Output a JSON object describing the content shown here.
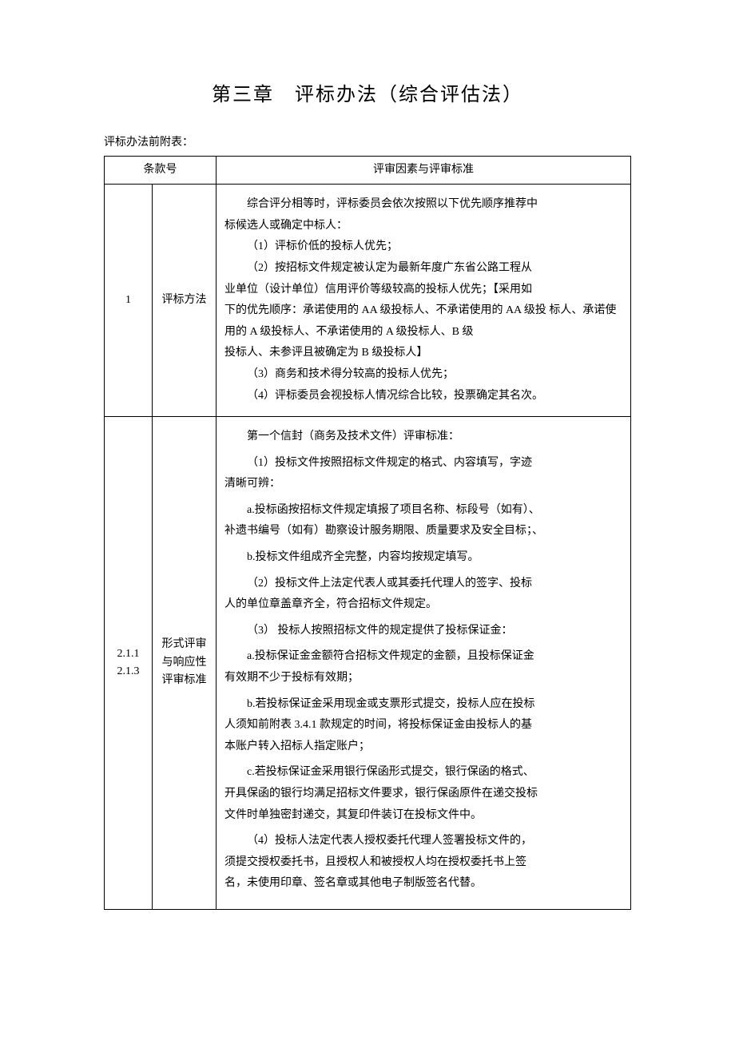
{
  "title": "第三章　评标办法（综合评估法）",
  "subtitle": "评标办法前附表：",
  "header": {
    "col1": "条款号",
    "col2": "评审因素与评审标准"
  },
  "row1": {
    "num": "1",
    "method": "评标方法",
    "lines": {
      "l1": "综合评分相等时，评标委员会依次按照以下优先顺序推荐中",
      "l2": "标候选人或确定中标人：",
      "l3": "（1）评标价低的投标人优先；",
      "l4": "（2）按招标文件规定被认定为最新年度广东省公路工程从",
      "l5": "业单位（设计单位）信用评价等级较高的投标人优先；【采用如",
      "l6": "下的优先顺序：承诺使用的 AA 级投标人、不承诺使用的 AA 级投 标人、承诺使用的 A 级投标人、不承诺使用的 A 级投标人、B 级",
      "l7": "投标人、未参评且被确定为 B 级投标人】",
      "l8": "（3）商务和技术得分较高的投标人优先；",
      "l9": "（4）评标委员会视投标人情况综合比较，投票确定其名次。"
    }
  },
  "row2": {
    "num1": "2.1.1",
    "num2": "2.1.3",
    "method": "形式评审与响应性评审标准",
    "lines": {
      "l1": "第一个信封（商务及技术文件）评审标准：",
      "l2": "（1）投标文件按照招标文件规定的格式、内容填写，字迹",
      "l3": "清晰可辨：",
      "l4": "a.投标函按招标文件规定填报了项目名称、标段号（如有）、",
      "l5": "补遗书编号（如有）勘察设计服务期限、质量要求及安全目标；、",
      "l6": "b.投标文件组成齐全完整，内容均按规定填写。",
      "l7": "（2）投标文件上法定代表人或其委托代理人的签字、投标",
      "l8": "人的单位章盖章齐全，符合招标文件规定。",
      "l9": "（3） 投标人按照招标文件的规定提供了投标保证金：",
      "l10": "a.投标保证金金额符合招标文件规定的金额，且投标保证金",
      "l11": "有效期不少于投标有效期；",
      "l12": "b.若投标保证金采用现金或支票形式提交，投标人应在投标",
      "l13": "人须知前附表 3.4.1 款规定的时间，将投标保证金由投标人的基",
      "l14": "本账户转入招标人指定账户；",
      "l15": "c.若投标保证金采用银行保函形式提交，银行保函的格式、",
      "l16": "开具保函的银行均满足招标文件要求，银行保函原件在递交投标",
      "l17": "文件时单独密封递交，其复印件装订在投标文件中。",
      "l18": "（4）投标人法定代表人授权委托代理人签署投标文件的，",
      "l19": "须提交授权委托书，且授权人和被授权人均在授权委托书上签",
      "l20": "名，未使用印章、签名章或其他电子制版签名代替。"
    }
  }
}
